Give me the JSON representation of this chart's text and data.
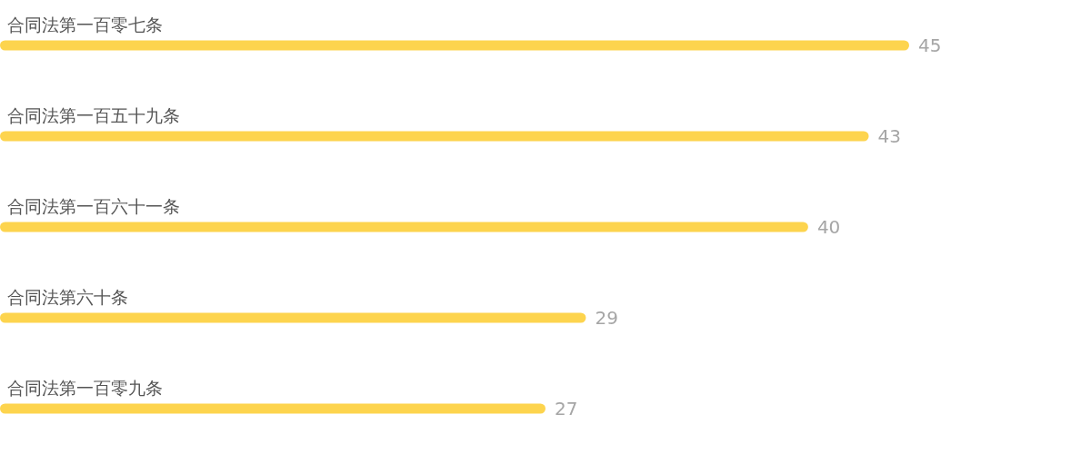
{
  "chart_data": {
    "type": "bar",
    "orientation": "horizontal",
    "categories": [
      "合同法第一百零七条",
      "合同法第一百五十九条",
      "合同法第一百六十一条",
      "合同法第六十条",
      "合同法第一百零九条"
    ],
    "values": [
      45,
      43,
      40,
      29,
      27
    ],
    "color": "#fdd44e",
    "data_labels": true
  }
}
